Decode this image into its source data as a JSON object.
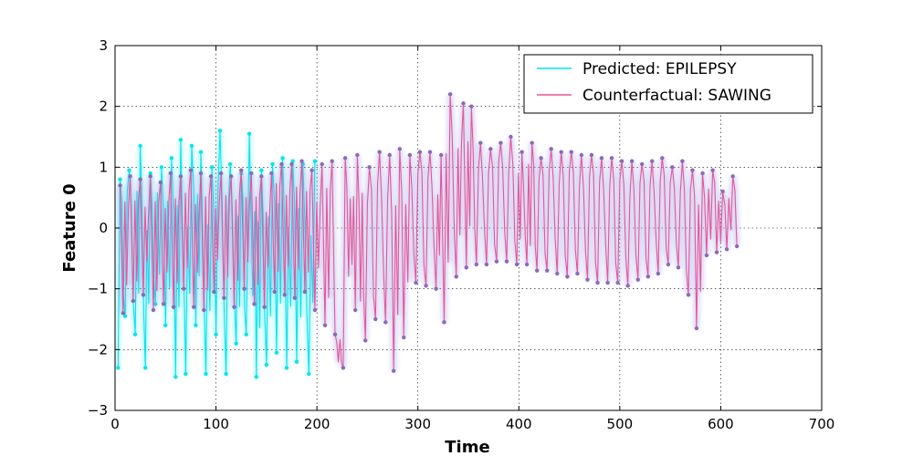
{
  "chart_data": {
    "type": "line",
    "xlabel": "Time",
    "ylabel": "Feature 0",
    "xlim": [
      0,
      700
    ],
    "ylim": [
      -3,
      3
    ],
    "x_ticks": [
      0,
      100,
      200,
      300,
      400,
      500,
      600,
      700
    ],
    "y_ticks": [
      -3,
      -2,
      -1,
      0,
      1,
      2,
      3
    ],
    "x_tick_labels": [
      "0",
      "100",
      "200",
      "300",
      "400",
      "500",
      "600",
      "700"
    ],
    "y_tick_labels": [
      "−3",
      "−2",
      "−1",
      "0",
      "1",
      "2",
      "3"
    ],
    "grid": true,
    "legend_position": "top-right",
    "series": [
      {
        "name": "Predicted: EPILEPSY",
        "color": "#00e5ee",
        "x_range": [
          0,
          205
        ],
        "peaks": [
          [
            5,
            0.8
          ],
          [
            14,
            0.95
          ],
          [
            25,
            1.35
          ],
          [
            35,
            0.9
          ],
          [
            46,
            1.0
          ],
          [
            56,
            1.15
          ],
          [
            65,
            1.45
          ],
          [
            76,
            1.35
          ],
          [
            85,
            1.25
          ],
          [
            96,
            1.0
          ],
          [
            104,
            1.6
          ],
          [
            114,
            1.05
          ],
          [
            125,
            0.9
          ],
          [
            133,
            1.55
          ],
          [
            145,
            0.95
          ],
          [
            156,
            1.05
          ],
          [
            166,
            1.15
          ],
          [
            176,
            1.1
          ],
          [
            186,
            1.05
          ],
          [
            198,
            1.1
          ]
        ],
        "troughs": [
          [
            3,
            -2.3
          ],
          [
            10,
            -1.45
          ],
          [
            20,
            -1.75
          ],
          [
            30,
            -2.3
          ],
          [
            40,
            -1.25
          ],
          [
            50,
            -1.6
          ],
          [
            60,
            -2.45
          ],
          [
            70,
            -2.4
          ],
          [
            80,
            -1.6
          ],
          [
            90,
            -2.4
          ],
          [
            100,
            -1.75
          ],
          [
            110,
            -2.4
          ],
          [
            120,
            -1.9
          ],
          [
            130,
            -1.75
          ],
          [
            140,
            -2.45
          ],
          [
            150,
            -2.25
          ],
          [
            160,
            -2.05
          ],
          [
            170,
            -2.3
          ],
          [
            180,
            -2.2
          ],
          [
            192,
            -2.4
          ]
        ]
      },
      {
        "name": "Counterfactual: SAWING",
        "color": "#e8559a",
        "x_range": [
          0,
          620
        ],
        "peaks": [
          [
            5,
            0.7
          ],
          [
            15,
            0.85
          ],
          [
            25,
            0.8
          ],
          [
            35,
            0.85
          ],
          [
            45,
            0.75
          ],
          [
            55,
            0.9
          ],
          [
            65,
            0.85
          ],
          [
            75,
            0.95
          ],
          [
            85,
            0.9
          ],
          [
            95,
            0.85
          ],
          [
            105,
            0.9
          ],
          [
            115,
            0.85
          ],
          [
            125,
            0.95
          ],
          [
            135,
            0.9
          ],
          [
            145,
            0.85
          ],
          [
            155,
            0.9
          ],
          [
            165,
            1.05
          ],
          [
            175,
            1.05
          ],
          [
            185,
            1.1
          ],
          [
            195,
            0.95
          ],
          [
            205,
            1.05
          ],
          [
            215,
            1.1
          ],
          [
            228,
            1.15
          ],
          [
            240,
            1.2
          ],
          [
            252,
            1.0
          ],
          [
            262,
            1.25
          ],
          [
            272,
            1.2
          ],
          [
            282,
            1.3
          ],
          [
            292,
            1.2
          ],
          [
            302,
            1.25
          ],
          [
            312,
            1.25
          ],
          [
            323,
            1.2
          ],
          [
            332,
            2.2
          ],
          [
            345,
            2.05
          ],
          [
            353,
            2.0
          ],
          [
            362,
            1.4
          ],
          [
            372,
            1.3
          ],
          [
            382,
            1.4
          ],
          [
            392,
            1.5
          ],
          [
            403,
            1.25
          ],
          [
            413,
            1.4
          ],
          [
            422,
            1.15
          ],
          [
            432,
            1.3
          ],
          [
            442,
            1.25
          ],
          [
            452,
            1.25
          ],
          [
            462,
            1.2
          ],
          [
            472,
            1.2
          ],
          [
            482,
            1.15
          ],
          [
            492,
            1.15
          ],
          [
            502,
            1.1
          ],
          [
            512,
            1.1
          ],
          [
            522,
            1.05
          ],
          [
            532,
            1.1
          ],
          [
            542,
            1.15
          ],
          [
            552,
            1.0
          ],
          [
            562,
            1.1
          ],
          [
            572,
            0.95
          ],
          [
            582,
            0.9
          ],
          [
            592,
            0.95
          ],
          [
            602,
            0.6
          ],
          [
            612,
            0.85
          ]
        ],
        "troughs": [
          [
            8,
            -1.4
          ],
          [
            18,
            -1.2
          ],
          [
            28,
            -1.1
          ],
          [
            38,
            -1.35
          ],
          [
            48,
            -1.25
          ],
          [
            58,
            -1.3
          ],
          [
            68,
            -1.0
          ],
          [
            78,
            -1.3
          ],
          [
            88,
            -1.35
          ],
          [
            98,
            -1.05
          ],
          [
            108,
            -1.15
          ],
          [
            118,
            -1.3
          ],
          [
            128,
            -1.0
          ],
          [
            138,
            -1.25
          ],
          [
            148,
            -1.3
          ],
          [
            158,
            -1.05
          ],
          [
            168,
            -1.1
          ],
          [
            178,
            -1.15
          ],
          [
            188,
            -1.05
          ],
          [
            198,
            -1.35
          ],
          [
            208,
            -1.6
          ],
          [
            218,
            -1.75
          ],
          [
            226,
            -2.3
          ],
          [
            238,
            -1.35
          ],
          [
            248,
            -1.85
          ],
          [
            258,
            -1.5
          ],
          [
            268,
            -1.55
          ],
          [
            276,
            -2.35
          ],
          [
            286,
            -1.8
          ],
          [
            298,
            -0.9
          ],
          [
            308,
            -0.95
          ],
          [
            318,
            -1.0
          ],
          [
            326,
            -1.55
          ],
          [
            338,
            -0.8
          ],
          [
            348,
            -0.65
          ],
          [
            358,
            -0.6
          ],
          [
            368,
            -0.6
          ],
          [
            378,
            -0.55
          ],
          [
            388,
            -0.55
          ],
          [
            398,
            -0.6
          ],
          [
            408,
            -0.6
          ],
          [
            418,
            -0.7
          ],
          [
            428,
            -0.7
          ],
          [
            438,
            -0.75
          ],
          [
            448,
            -0.8
          ],
          [
            458,
            -0.75
          ],
          [
            468,
            -0.85
          ],
          [
            478,
            -0.9
          ],
          [
            488,
            -0.9
          ],
          [
            498,
            -0.9
          ],
          [
            508,
            -0.95
          ],
          [
            518,
            -0.85
          ],
          [
            528,
            -0.8
          ],
          [
            538,
            -0.75
          ],
          [
            548,
            -0.6
          ],
          [
            558,
            -0.65
          ],
          [
            568,
            -1.1
          ],
          [
            576,
            -1.65
          ],
          [
            586,
            -0.45
          ],
          [
            596,
            -0.4
          ],
          [
            606,
            -0.35
          ],
          [
            616,
            -0.3
          ]
        ]
      }
    ]
  }
}
